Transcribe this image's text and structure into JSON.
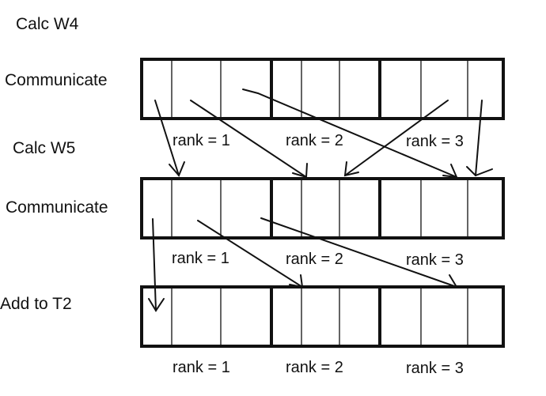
{
  "labels": {
    "calc_w4": "Calc W4",
    "communicate_1": "Communicate",
    "calc_w5": "Calc W5",
    "communicate_2": "Communicate",
    "add_to_t2": "Add to T2"
  },
  "rows": [
    {
      "ranks": [
        {
          "label": "rank = 1"
        },
        {
          "label": "rank = 2"
        },
        {
          "label": "rank = 3"
        }
      ]
    },
    {
      "ranks": [
        {
          "label": "rank = 1"
        },
        {
          "label": "rank = 2"
        },
        {
          "label": "rank = 3"
        }
      ]
    },
    {
      "ranks": [
        {
          "label": "rank = 1"
        },
        {
          "label": "rank = 2"
        },
        {
          "label": "rank = 3"
        }
      ]
    }
  ],
  "colors": {
    "stroke": "#111111",
    "background": "#ffffff"
  }
}
